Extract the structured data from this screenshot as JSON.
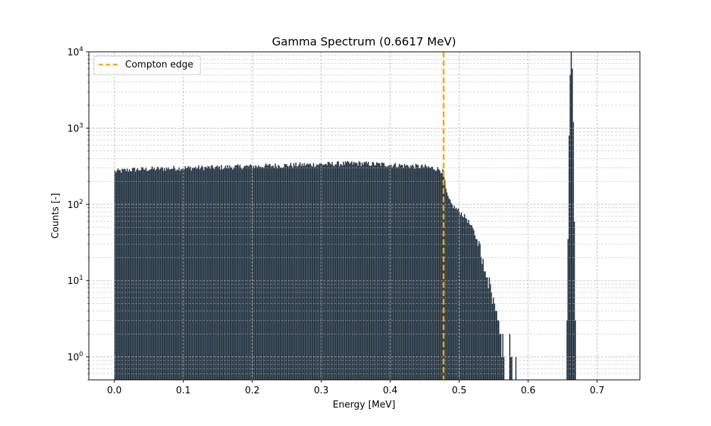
{
  "chart_data": {
    "type": "bar",
    "title": "Gamma Spectrum (0.6617 MeV)",
    "xlabel": "Energy [MeV]",
    "ylabel": "Counts [-]",
    "xlim": [
      -0.037,
      0.762
    ],
    "ylim": [
      0.5,
      10000
    ],
    "yscale": "log",
    "grid": true,
    "legend_position": "top-left",
    "x_ticks": [
      {
        "value": 0.0,
        "label": "0.0"
      },
      {
        "value": 0.1,
        "label": "0.1"
      },
      {
        "value": 0.2,
        "label": "0.2"
      },
      {
        "value": 0.3,
        "label": "0.3"
      },
      {
        "value": 0.4,
        "label": "0.4"
      },
      {
        "value": 0.5,
        "label": "0.5"
      },
      {
        "value": 0.6,
        "label": "0.6"
      },
      {
        "value": 0.7,
        "label": "0.7"
      }
    ],
    "y_ticks": [
      {
        "value": 1,
        "base": "10",
        "exp": "0"
      },
      {
        "value": 10,
        "base": "10",
        "exp": "1"
      },
      {
        "value": 100,
        "base": "10",
        "exp": "2"
      },
      {
        "value": 1000,
        "base": "10",
        "exp": "3"
      },
      {
        "value": 10000,
        "base": "10",
        "exp": "4"
      }
    ],
    "compton_edge": {
      "name": "Compton edge",
      "x": 0.4774,
      "color": "#ffa500"
    },
    "bar_color": "#1c2d3c",
    "bar_edge_color": "#778088",
    "series": {
      "bin_width": 0.0015,
      "continuum": [
        {
          "x": 0.0,
          "y": 270
        },
        {
          "x": 0.025,
          "y": 285
        },
        {
          "x": 0.05,
          "y": 290
        },
        {
          "x": 0.1,
          "y": 300
        },
        {
          "x": 0.15,
          "y": 305
        },
        {
          "x": 0.2,
          "y": 315
        },
        {
          "x": 0.25,
          "y": 325
        },
        {
          "x": 0.3,
          "y": 335
        },
        {
          "x": 0.35,
          "y": 345
        },
        {
          "x": 0.4,
          "y": 330
        },
        {
          "x": 0.45,
          "y": 310
        },
        {
          "x": 0.47,
          "y": 290
        },
        {
          "x": 0.4774,
          "y": 260
        },
        {
          "x": 0.48,
          "y": 150
        },
        {
          "x": 0.485,
          "y": 110
        },
        {
          "x": 0.49,
          "y": 95
        },
        {
          "x": 0.5,
          "y": 80
        },
        {
          "x": 0.51,
          "y": 65
        },
        {
          "x": 0.52,
          "y": 45
        },
        {
          "x": 0.53,
          "y": 25
        },
        {
          "x": 0.54,
          "y": 12
        },
        {
          "x": 0.55,
          "y": 5
        },
        {
          "x": 0.555,
          "y": 3
        },
        {
          "x": 0.56,
          "y": 2
        },
        {
          "x": 0.565,
          "y": 1
        }
      ],
      "sparse": [
        {
          "x": 0.5725,
          "y": 2
        },
        {
          "x": 0.574,
          "y": 1
        },
        {
          "x": 0.5755,
          "y": 1
        },
        {
          "x": 0.5815,
          "y": 1
        }
      ],
      "peak": [
        {
          "x": 0.6557,
          "y": 3
        },
        {
          "x": 0.6572,
          "y": 35
        },
        {
          "x": 0.6587,
          "y": 800
        },
        {
          "x": 0.6602,
          "y": 5000
        },
        {
          "x": 0.6617,
          "y": 10000
        },
        {
          "x": 0.6632,
          "y": 6000
        },
        {
          "x": 0.6647,
          "y": 1200
        },
        {
          "x": 0.6662,
          "y": 60
        },
        {
          "x": 0.6677,
          "y": 3
        }
      ]
    }
  }
}
